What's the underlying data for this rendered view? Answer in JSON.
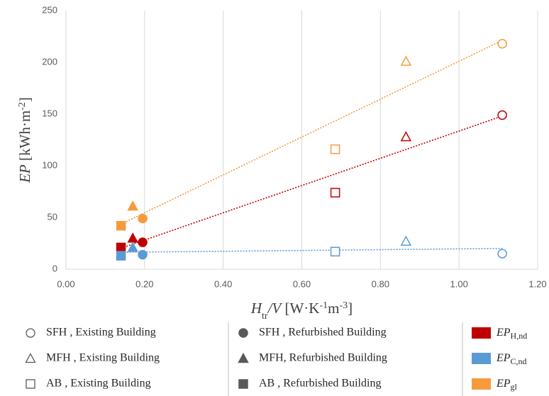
{
  "chart_data": {
    "type": "scatter",
    "x": [
      1.11,
      0.865,
      0.685,
      0.195,
      0.17,
      0.14
    ],
    "buildings": [
      {
        "label": "SFH , Existing Building",
        "shape": "circle",
        "filled": false
      },
      {
        "label": "MFH , Existing Building",
        "shape": "triangle",
        "filled": false
      },
      {
        "label": "AB , Existing Building",
        "shape": "square",
        "filled": false
      },
      {
        "label": "SFH , Refurbished Building",
        "shape": "circle",
        "filled": true
      },
      {
        "label": "MFH, Refurbished Building",
        "shape": "triangle",
        "filled": true
      },
      {
        "label": "AB , Refurbished Building",
        "shape": "square",
        "filled": true
      }
    ],
    "series": [
      {
        "name": "EP",
        "subscript": "H,nd",
        "color": "#c00000",
        "values": [
          149,
          128,
          74,
          26,
          30,
          21
        ]
      },
      {
        "name": "EP",
        "subscript": "C,nd",
        "color": "#5b9bd5",
        "values": [
          15,
          27,
          17,
          14,
          21,
          13
        ]
      },
      {
        "name": "EP",
        "subscript": "gl",
        "color": "#f79a3c",
        "values": [
          218,
          201,
          116,
          49,
          61,
          42
        ]
      }
    ],
    "trendline": "linear",
    "xlim": [
      0,
      1.2
    ],
    "xticks": [
      {
        "value": 0,
        "label": "0.00"
      },
      {
        "value": 0.2,
        "label": "0.20"
      },
      {
        "value": 0.4,
        "label": "0.40"
      },
      {
        "value": 0.6,
        "label": "0.60"
      },
      {
        "value": 0.8,
        "label": "0.80"
      },
      {
        "value": 1,
        "label": "1.00"
      },
      {
        "value": 1.2,
        "label": "1.20"
      }
    ],
    "ylim": [
      0,
      250
    ],
    "yticks": [
      0,
      50,
      100,
      150,
      200,
      250
    ],
    "grid": "x",
    "x_label_parts": [
      {
        "text": "H",
        "style": "italic"
      },
      {
        "text": "tr",
        "style": "sub"
      },
      {
        "text": "/V",
        "style": "italic"
      },
      {
        "text": " [W·K",
        "style": "normal"
      },
      {
        "text": "-1",
        "style": "sup"
      },
      {
        "text": "m",
        "style": "normal"
      },
      {
        "text": "-3",
        "style": "sup"
      },
      {
        "text": "]",
        "style": "normal"
      }
    ],
    "y_label_parts": [
      {
        "text": "EP",
        "style": "italic"
      },
      {
        "text": " [kWh·m",
        "style": "normal"
      },
      {
        "text": "-2",
        "style": "sup"
      },
      {
        "text": "]",
        "style": "normal"
      }
    ]
  }
}
